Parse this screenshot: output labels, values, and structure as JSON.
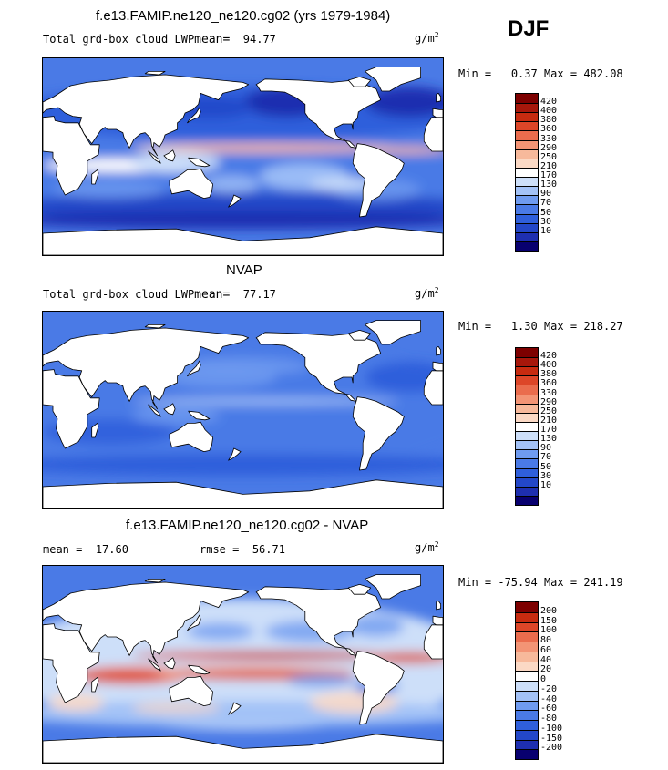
{
  "season": "DJF",
  "colors": {
    "levels": [
      "#08006f",
      "#1e2fb0",
      "#2347c8",
      "#2f5fdb",
      "#4a7ae6",
      "#6f9bf0",
      "#a3c2f7",
      "#cddff9",
      "#ffffff",
      "#fbd9c5",
      "#f7b99b",
      "#f39475",
      "#ea6c4d",
      "#dd4628",
      "#c72b10",
      "#a7170b",
      "#7d0000"
    ],
    "diff_levels": [
      "#08006f",
      "#1e2fb0",
      "#2347c8",
      "#2f5fdb",
      "#4a7ae6",
      "#6f9bf0",
      "#a3c2f7",
      "#cddff9",
      "#ffffff",
      "#fbd9c5",
      "#f7b99b",
      "#f39475",
      "#ea6c4d",
      "#dd4628",
      "#c72b10",
      "#7d0000"
    ],
    "land": "#ffffff",
    "coast": "#000000"
  },
  "panels": [
    {
      "title": "f.e13.FAMIP.ne120_ne120.cg02 (yrs 1979-1984)",
      "subtitle": "Total grd-box cloud LWP",
      "mean_label": "mean=",
      "mean_value": "94.77",
      "units_base": "g/m",
      "units_exp": "2",
      "min_label": "Min =",
      "min_value": "0.37",
      "max_label": "Max =",
      "max_value": "482.08",
      "colorbar_labels": [
        "420",
        "400",
        "380",
        "360",
        "330",
        "290",
        "250",
        "210",
        "170",
        "130",
        "90",
        "70",
        "50",
        "30",
        "10"
      ],
      "field_mean": 94.77,
      "field_min": 0.37,
      "field_max": 482.08
    },
    {
      "title": "NVAP",
      "subtitle": "Total grd-box cloud LWP",
      "mean_label": "mean=",
      "mean_value": "77.17",
      "units_base": "g/m",
      "units_exp": "2",
      "min_label": "Min =",
      "min_value": "1.30",
      "max_label": "Max =",
      "max_value": "218.27",
      "colorbar_labels": [
        "420",
        "400",
        "380",
        "360",
        "330",
        "290",
        "250",
        "210",
        "170",
        "130",
        "90",
        "70",
        "50",
        "30",
        "10"
      ],
      "field_mean": 77.17,
      "field_min": 1.3,
      "field_max": 218.27
    },
    {
      "title": "f.e13.FAMIP.ne120_ne120.cg02 - NVAP",
      "mean_label": "mean =",
      "mean_value": "17.60",
      "rmse_label": "rmse =",
      "rmse_value": "56.71",
      "units_base": "g/m",
      "units_exp": "2",
      "min_label": "Min =",
      "min_value": "-75.94",
      "max_label": "Max =",
      "max_value": "241.19",
      "colorbar_labels": [
        "200",
        "150",
        "100",
        "80",
        "60",
        "40",
        "20",
        "0",
        "-20",
        "-40",
        "-60",
        "-80",
        "-100",
        "-150",
        "-200"
      ],
      "field_mean": 17.6,
      "field_min": -75.94,
      "field_max": 241.19
    }
  ]
}
